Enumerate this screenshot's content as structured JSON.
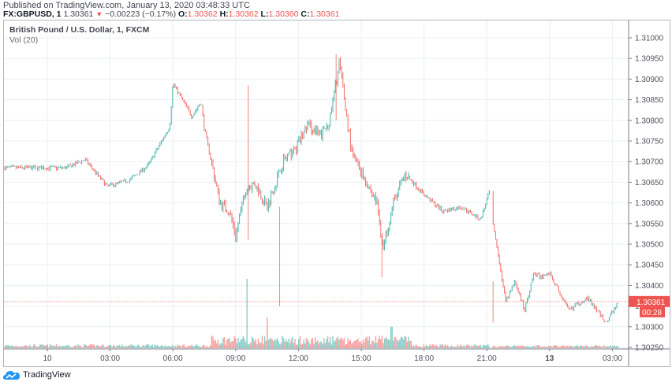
{
  "header": {
    "published": "Published on TradingView.com, January 13, 2020 03:48:33 UTC",
    "symbol": "FX:GBPUSD, 1",
    "last": "1.30361",
    "change_arrow": "▼",
    "change": "−0.00223 (−0.17%)",
    "o_label": "O:",
    "o": "1.30362",
    "h_label": "H:",
    "h": "1.30362",
    "l_label": "L:",
    "l": "1.30360",
    "c_label": "C:",
    "c": "1.30361"
  },
  "legend": {
    "title": "British Pound / U.S. Dollar, 1, FXCM",
    "volume": "Vol (20)"
  },
  "price_badge": {
    "price": "1.30361",
    "countdown": "00:28"
  },
  "footer": {
    "brand": "TradingView"
  },
  "colors": {
    "up": "#26a69a",
    "down": "#ef5350",
    "grid": "#e8f0f4",
    "axis_text": "#50535e",
    "badge": "#ef5350"
  },
  "chart_data": {
    "type": "candlestick",
    "title": "British Pound / U.S. Dollar, 1, FXCM",
    "symbol": "FX:GBPUSD",
    "interval": "1 minute",
    "xlabel": "",
    "ylabel": "",
    "y_ticks": [
      "1.31000",
      "1.30950",
      "1.30900",
      "1.30850",
      "1.30800",
      "1.30750",
      "1.30700",
      "1.30650",
      "1.30600",
      "1.30550",
      "1.30500",
      "1.30450",
      "1.30400",
      "1.30350",
      "1.30300",
      "1.30250"
    ],
    "x_ticks": [
      "10",
      "03:00",
      "06:00",
      "09:00",
      "12:00",
      "15:00",
      "18:00",
      "21:00",
      "13",
      "03:00"
    ],
    "ylim": [
      1.3025,
      1.3102
    ],
    "last_price": 1.30361,
    "grid": true,
    "price_waypoints": {
      "x_tick_index": [
        0,
        0.3,
        0.6,
        0.95,
        1.3,
        1.6,
        1.95,
        2.0,
        2.3,
        2.45,
        2.5,
        2.75,
        2.9,
        3.0,
        3.15,
        3.3,
        3.5,
        3.75,
        3.95,
        4.15,
        4.35,
        4.5,
        4.65,
        4.85,
        5.05,
        5.25,
        5.35,
        5.5,
        5.7,
        6.0,
        6.3,
        6.6,
        6.9,
        7.05,
        7.1,
        7.3,
        7.45,
        7.6,
        7.75,
        7.85,
        8.0,
        8.3,
        8.6,
        8.9,
        9.1
      ],
      "price": [
        1.30685,
        1.30685,
        1.30705,
        1.3064,
        1.30655,
        1.3069,
        1.30785,
        1.3089,
        1.3081,
        1.30845,
        1.3078,
        1.306,
        1.3058,
        1.3052,
        1.3063,
        1.3065,
        1.3059,
        1.307,
        1.3073,
        1.3079,
        1.3076,
        1.308,
        1.3094,
        1.3072,
        1.3066,
        1.306,
        1.3049,
        1.306,
        1.3067,
        1.3062,
        1.3058,
        1.3059,
        1.3056,
        1.3063,
        1.3055,
        1.3036,
        1.3041,
        1.3034,
        1.3043,
        1.3042,
        1.3043,
        1.3034,
        1.3037,
        1.3031,
        1.30361
      ]
    },
    "volume_profile": {
      "description": "Low volume overnight; elevated 08:00–16:30 with spikes near 09:40 and 13:30; low volume after 18:00",
      "relative_peaks": [
        {
          "time": "09:40",
          "level": 1.0
        },
        {
          "time": "10:05",
          "level": 0.45
        },
        {
          "time": "13:30",
          "level": 0.35
        }
      ]
    }
  }
}
